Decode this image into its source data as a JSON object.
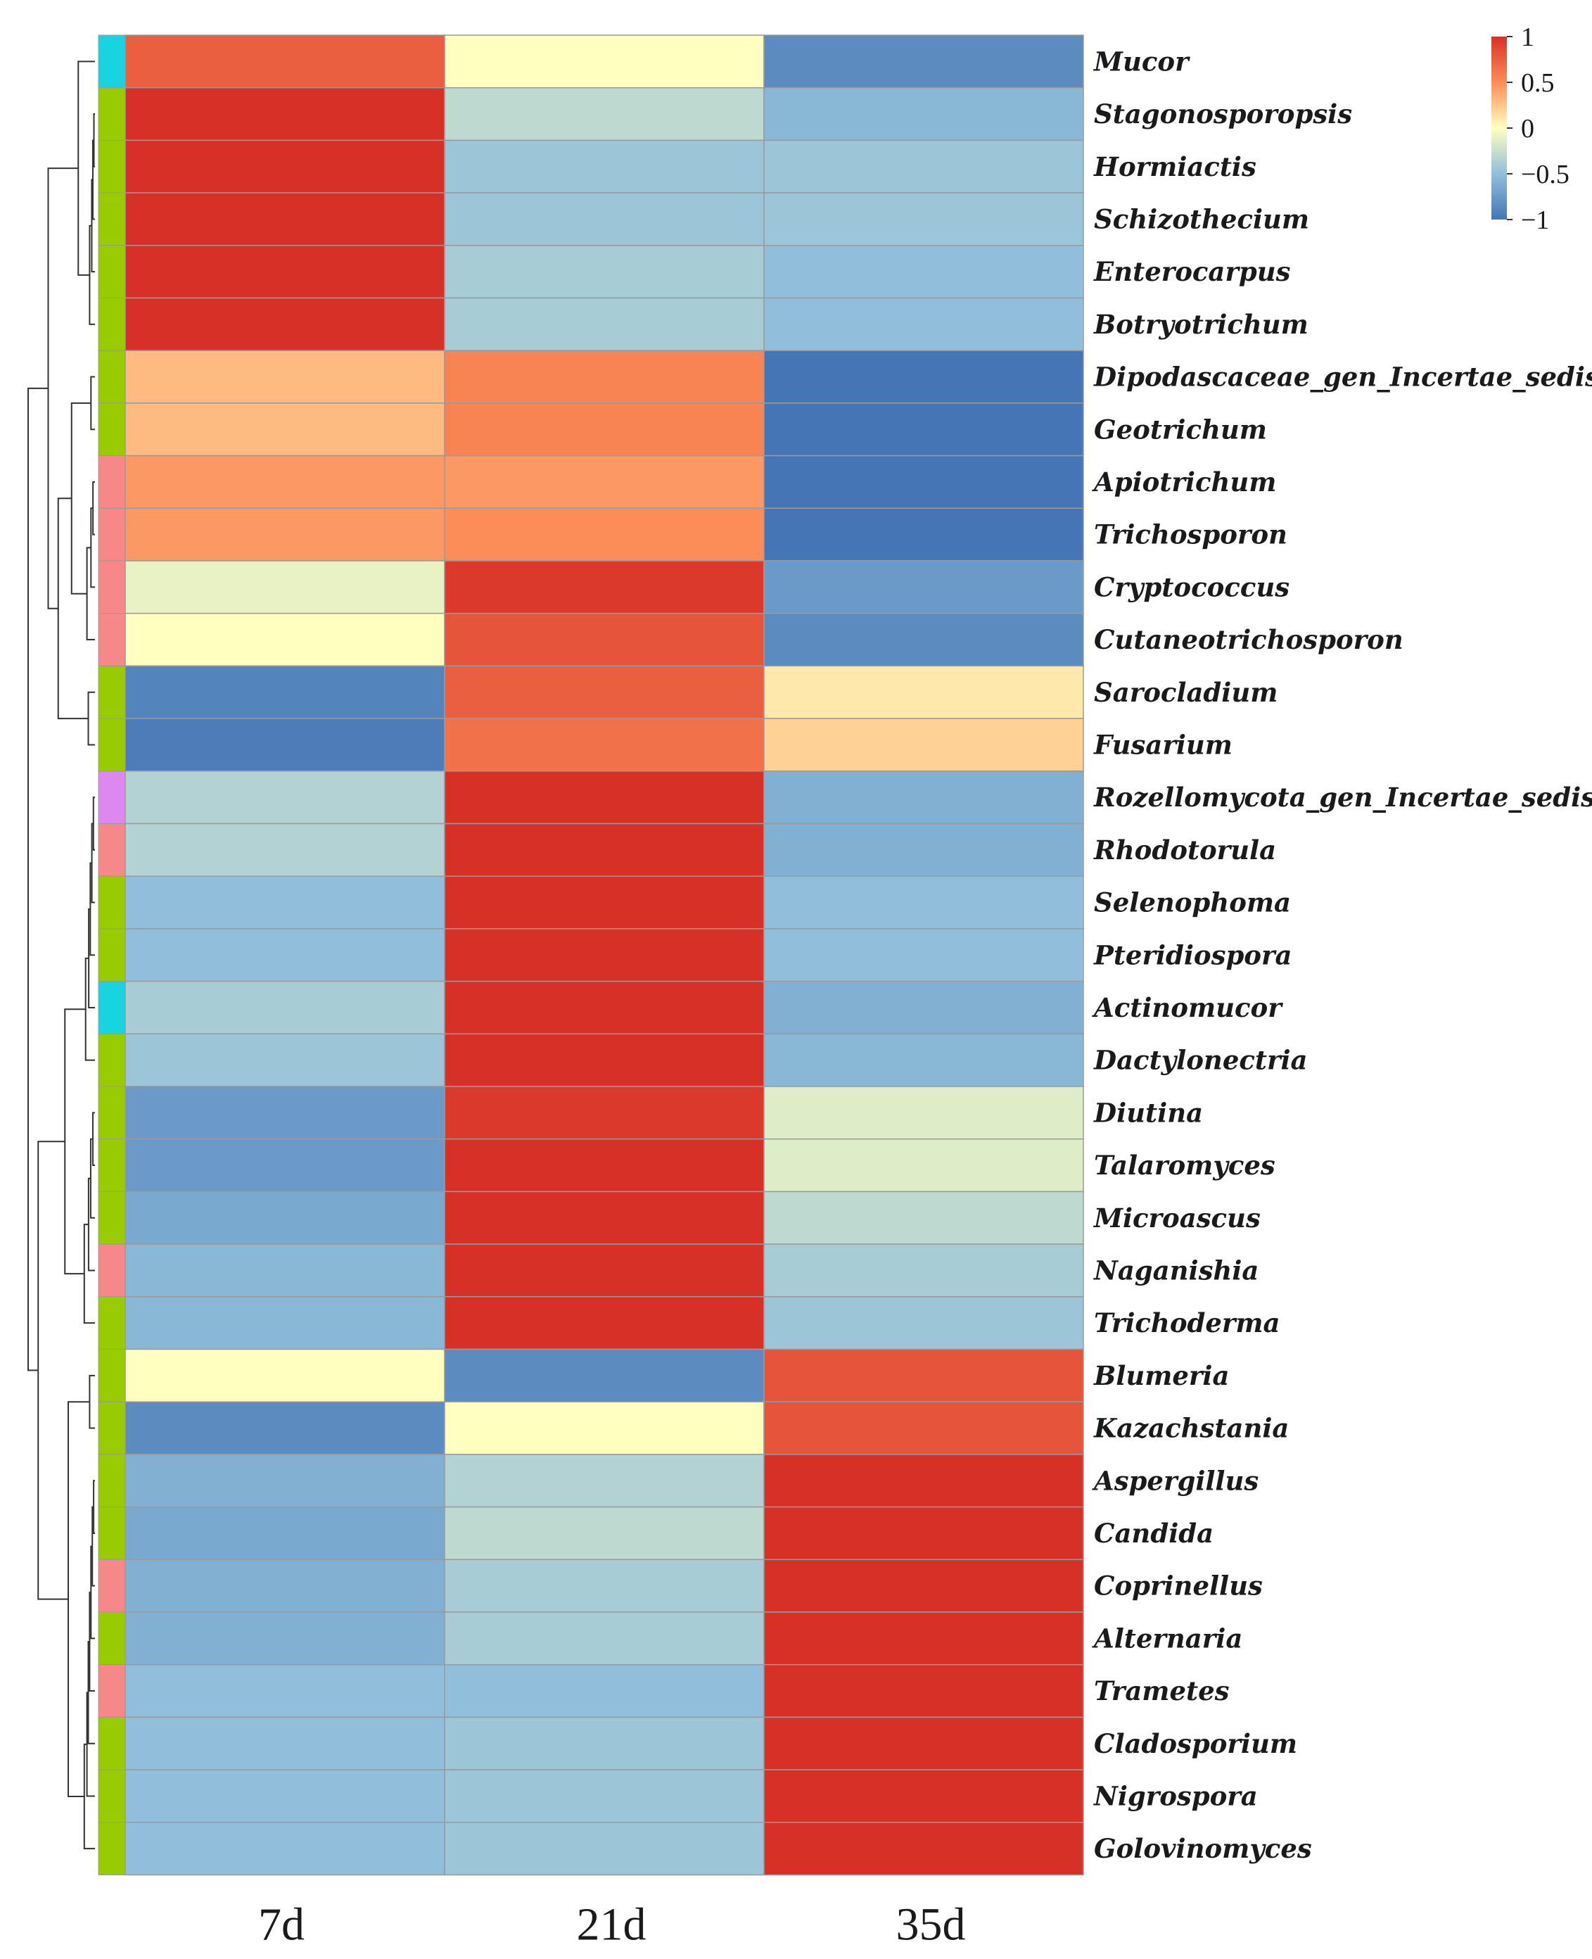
{
  "chart_data": {
    "type": "heatmap",
    "title": "",
    "columns": [
      "7d",
      "21d",
      "35d"
    ],
    "rows": [
      {
        "label": "Mucor",
        "group": "cyan",
        "values": [
          0.75,
          0.0,
          -0.85
        ]
      },
      {
        "label": "Stagonosporopsis",
        "group": "green",
        "values": [
          1.0,
          -0.3,
          -0.55
        ]
      },
      {
        "label": "Hormiactis",
        "group": "green",
        "values": [
          1.0,
          -0.45,
          -0.45
        ]
      },
      {
        "label": "Schizothecium",
        "group": "green",
        "values": [
          1.0,
          -0.45,
          -0.45
        ]
      },
      {
        "label": "Enterocarpus",
        "group": "green",
        "values": [
          1.0,
          -0.4,
          -0.5
        ]
      },
      {
        "label": "Botryotrichum",
        "group": "green",
        "values": [
          1.0,
          -0.4,
          -0.5
        ]
      },
      {
        "label": "Dipodascaceae_gen_Incertae_sedis",
        "group": "green",
        "values": [
          0.3,
          0.55,
          -1.0
        ]
      },
      {
        "label": "Geotrichum",
        "group": "green",
        "values": [
          0.3,
          0.55,
          -1.0
        ]
      },
      {
        "label": "Apiotrichum",
        "group": "pink",
        "values": [
          0.45,
          0.45,
          -1.0
        ]
      },
      {
        "label": "Trichosporon",
        "group": "pink",
        "values": [
          0.45,
          0.5,
          -1.0
        ]
      },
      {
        "label": "Cryptococcus",
        "group": "pink",
        "values": [
          -0.1,
          0.95,
          -0.75
        ]
      },
      {
        "label": "Cutaneotrichosporon",
        "group": "pink",
        "values": [
          0.0,
          0.8,
          -0.85
        ]
      },
      {
        "label": "Sarocladium",
        "group": "green",
        "values": [
          -0.9,
          0.75,
          0.1
        ]
      },
      {
        "label": "Fusarium",
        "group": "green",
        "values": [
          -0.95,
          0.65,
          0.2
        ]
      },
      {
        "label": "Rozellomycota_gen_Incertae_sedis",
        "group": "violet",
        "values": [
          -0.35,
          1.0,
          -0.6
        ]
      },
      {
        "label": "Rhodotorula",
        "group": "pink",
        "values": [
          -0.35,
          1.0,
          -0.6
        ]
      },
      {
        "label": "Selenophoma",
        "group": "green",
        "values": [
          -0.5,
          1.0,
          -0.5
        ]
      },
      {
        "label": "Pteridiospora",
        "group": "green",
        "values": [
          -0.5,
          1.0,
          -0.5
        ]
      },
      {
        "label": "Actinomucor",
        "group": "cyan",
        "values": [
          -0.4,
          1.0,
          -0.6
        ]
      },
      {
        "label": "Dactylonectria",
        "group": "green",
        "values": [
          -0.45,
          1.0,
          -0.55
        ]
      },
      {
        "label": "Diutina",
        "group": "green",
        "values": [
          -0.75,
          0.95,
          -0.15
        ]
      },
      {
        "label": "Talaromyces",
        "group": "green",
        "values": [
          -0.75,
          1.0,
          -0.15
        ]
      },
      {
        "label": "Microascus",
        "group": "green",
        "values": [
          -0.65,
          1.0,
          -0.3
        ]
      },
      {
        "label": "Naganishia",
        "group": "pink",
        "values": [
          -0.55,
          1.0,
          -0.4
        ]
      },
      {
        "label": "Trichoderma",
        "group": "green",
        "values": [
          -0.55,
          1.0,
          -0.45
        ]
      },
      {
        "label": "Blumeria",
        "group": "green",
        "values": [
          0.0,
          -0.85,
          0.8
        ]
      },
      {
        "label": "Kazachstania",
        "group": "green",
        "values": [
          -0.85,
          0.0,
          0.8
        ]
      },
      {
        "label": "Aspergillus",
        "group": "green",
        "values": [
          -0.6,
          -0.35,
          1.0
        ]
      },
      {
        "label": "Candida",
        "group": "green",
        "values": [
          -0.65,
          -0.3,
          1.0
        ]
      },
      {
        "label": "Coprinellus",
        "group": "pink",
        "values": [
          -0.6,
          -0.4,
          1.0
        ]
      },
      {
        "label": "Alternaria",
        "group": "green",
        "values": [
          -0.6,
          -0.4,
          1.0
        ]
      },
      {
        "label": "Trametes",
        "group": "pink",
        "values": [
          -0.5,
          -0.5,
          1.0
        ]
      },
      {
        "label": "Cladosporium",
        "group": "green",
        "values": [
          -0.5,
          -0.45,
          1.0
        ]
      },
      {
        "label": "Nigrospora",
        "group": "green",
        "values": [
          -0.5,
          -0.45,
          1.0
        ]
      },
      {
        "label": "Golovinomyces",
        "group": "green",
        "values": [
          -0.5,
          -0.45,
          1.0
        ]
      }
    ],
    "color_scale": {
      "min": -1,
      "max": 1,
      "ticks": [
        "1",
        "0.5",
        "0",
        "−0.5",
        "−1"
      ],
      "colors": [
        "#4575b4",
        "#91bfdb",
        "#ffffbf",
        "#fc8d59",
        "#d73027"
      ]
    },
    "group_colors": {
      "cyan": "#17d4e0",
      "green": "#99cc00",
      "pink": "#f7888a",
      "violet": "#dd88ee"
    },
    "grid_color": "#9a9a9a",
    "legend_position": "top-right",
    "dendrogram": "left"
  }
}
